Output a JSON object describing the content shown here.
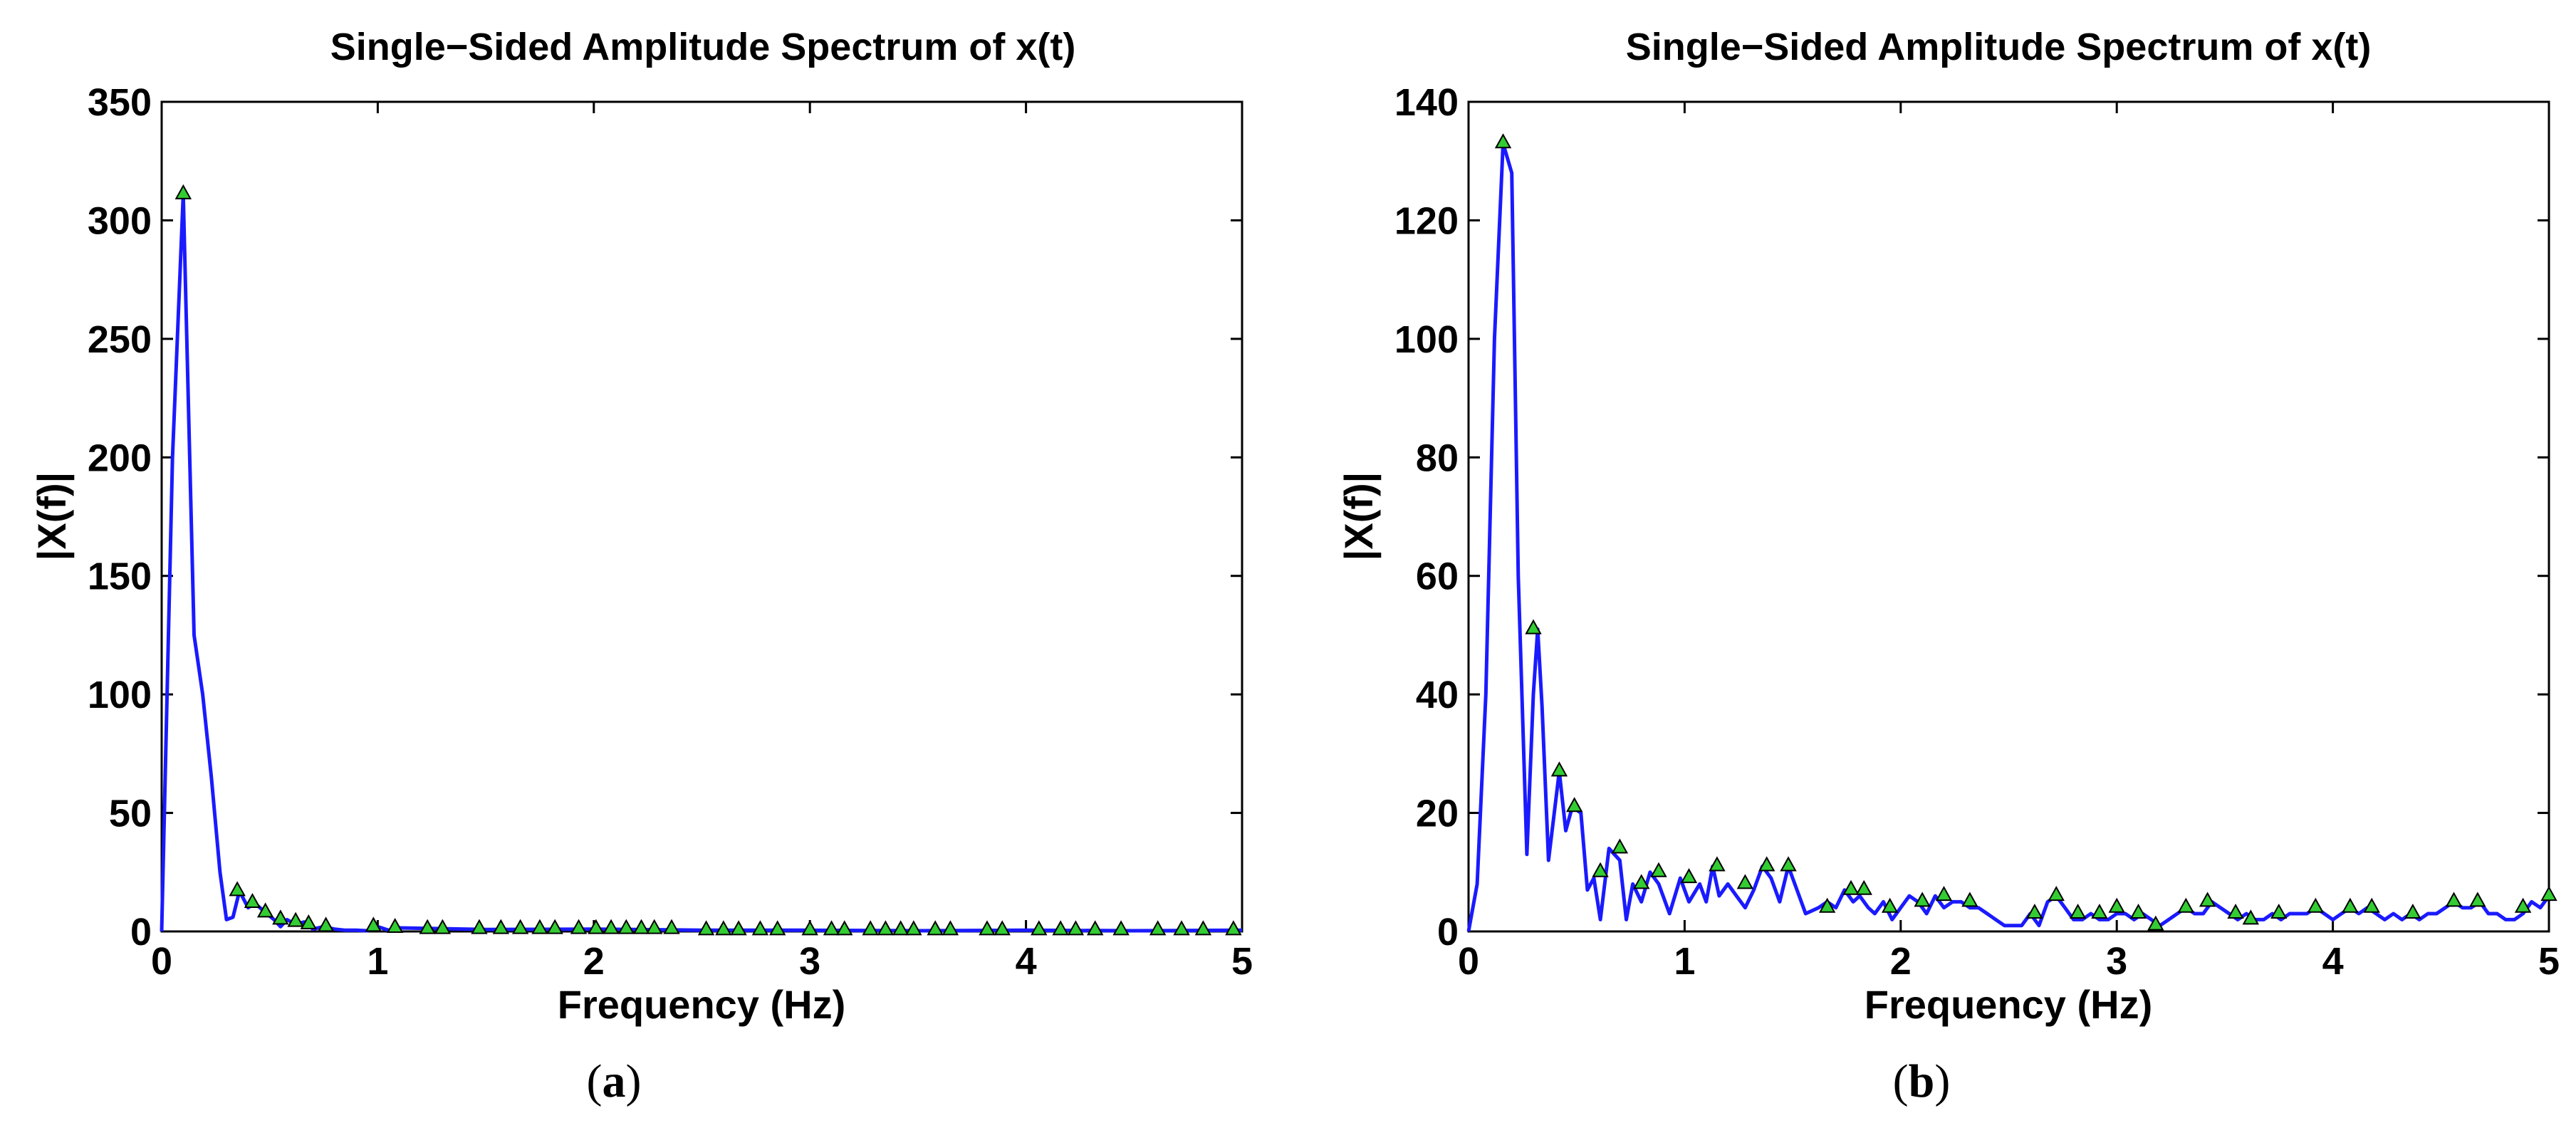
{
  "colors": {
    "line": "#1a1aff",
    "marker_fill": "#33cc33",
    "marker_edge": "#000000",
    "axes": "#000000"
  },
  "chart_data": [
    {
      "type": "line",
      "panel_label": "a",
      "title": "Single−Sided Amplitude Spectrum of x(t)",
      "xlabel": "Frequency (Hz)",
      "ylabel": "|X(f)|",
      "xlim": [
        0,
        5
      ],
      "ylim": [
        0,
        350
      ],
      "xticks": [
        0,
        1,
        2,
        3,
        4,
        5
      ],
      "yticks": [
        0,
        50,
        100,
        150,
        200,
        250,
        300,
        350
      ],
      "grid": false,
      "series": [
        {
          "x": [
            0,
            0.05,
            0.1,
            0.15,
            0.19,
            0.23,
            0.27,
            0.3,
            0.33,
            0.36,
            0.4,
            0.43,
            0.48,
            0.52,
            0.55,
            0.58,
            0.62,
            0.66,
            0.7,
            0.75,
            0.8,
            0.85,
            0.9,
            0.95,
            1.0,
            1.05,
            1.1,
            1.5,
            2.0,
            2.5,
            3.0,
            3.5,
            4.0,
            4.5,
            5.0
          ],
          "values": [
            0,
            200,
            311,
            125,
            100,
            65,
            25,
            5,
            6,
            17,
            10,
            12,
            8,
            5,
            2,
            5,
            3,
            4,
            1,
            2,
            1,
            0.5,
            0.5,
            0.3,
            2,
            0.5,
            1.5,
            0.8,
            1,
            0.5,
            0.5,
            0.3,
            0.5,
            0.3,
            0.5
          ]
        }
      ],
      "markers": {
        "x": [
          0.1,
          0.35,
          0.42,
          0.48,
          0.55,
          0.62,
          0.68,
          0.76,
          0.98,
          1.08,
          1.23,
          1.3,
          1.47,
          1.57,
          1.66,
          1.75,
          1.82,
          1.93,
          2.01,
          2.08,
          2.15,
          2.22,
          2.28,
          2.36,
          2.52,
          2.6,
          2.67,
          2.77,
          2.85,
          3.0,
          3.1,
          3.16,
          3.28,
          3.35,
          3.42,
          3.48,
          3.58,
          3.65,
          3.82,
          3.89,
          4.06,
          4.16,
          4.23,
          4.32,
          4.44,
          4.61,
          4.72,
          4.82,
          4.96
        ],
        "values": [
          311,
          17,
          12,
          8,
          5,
          4,
          3,
          2,
          2,
          1.5,
          1,
          1,
          1,
          1,
          1,
          1,
          1,
          1,
          1,
          1,
          1,
          1,
          1,
          1,
          0.5,
          0.5,
          0.5,
          0.5,
          0.5,
          0.5,
          0.5,
          0.5,
          0.5,
          0.5,
          0.5,
          0.5,
          0.5,
          0.5,
          0.5,
          0.5,
          0.5,
          0.5,
          0.5,
          0.5,
          0.5,
          0.5,
          0.5,
          0.5,
          0.5
        ]
      }
    },
    {
      "type": "line",
      "panel_label": "b",
      "title": "Single−Sided Amplitude Spectrum of x(t)",
      "xlabel": "Frequency (Hz)",
      "ylabel": "|X(f)|",
      "xlim": [
        0,
        5
      ],
      "ylim": [
        0,
        140
      ],
      "xticks": [
        0,
        1,
        2,
        3,
        4,
        5
      ],
      "yticks": [
        0,
        20,
        40,
        60,
        80,
        100,
        120,
        140
      ],
      "grid": false,
      "series": [
        {
          "x": [
            0,
            0.04,
            0.08,
            0.12,
            0.16,
            0.2,
            0.23,
            0.27,
            0.3,
            0.32,
            0.34,
            0.37,
            0.42,
            0.45,
            0.48,
            0.52,
            0.55,
            0.58,
            0.61,
            0.65,
            0.7,
            0.73,
            0.76,
            0.8,
            0.84,
            0.88,
            0.93,
            0.98,
            1.02,
            1.07,
            1.1,
            1.13,
            1.16,
            1.2,
            1.24,
            1.28,
            1.32,
            1.36,
            1.4,
            1.44,
            1.48,
            1.52,
            1.56,
            1.62,
            1.66,
            1.7,
            1.74,
            1.78,
            1.81,
            1.85,
            1.88,
            1.92,
            1.96,
            2.0,
            2.04,
            2.08,
            2.12,
            2.16,
            2.2,
            2.24,
            2.28,
            2.32,
            2.36,
            2.4,
            2.44,
            2.48,
            2.52,
            2.56,
            2.6,
            2.64,
            2.68,
            2.72,
            2.76,
            2.8,
            2.84,
            2.88,
            2.92,
            2.96,
            3.0,
            3.04,
            3.08,
            3.12,
            3.16,
            3.2,
            3.24,
            3.28,
            3.32,
            3.36,
            3.4,
            3.44,
            3.48,
            3.52,
            3.56,
            3.6,
            3.64,
            3.68,
            3.72,
            3.76,
            3.8,
            3.84,
            3.88,
            3.92,
            3.96,
            4.0,
            4.04,
            4.08,
            4.12,
            4.16,
            4.2,
            4.24,
            4.28,
            4.32,
            4.36,
            4.4,
            4.44,
            4.48,
            4.52,
            4.56,
            4.6,
            4.64,
            4.68,
            4.72,
            4.76,
            4.8,
            4.84,
            4.88,
            4.92,
            4.96,
            5.0
          ],
          "values": [
            0,
            8,
            40,
            100,
            133,
            128,
            60,
            13,
            40,
            51,
            38,
            12,
            27,
            17,
            21,
            20,
            7,
            9,
            2,
            14,
            12,
            2,
            8,
            5,
            10,
            8,
            3,
            9,
            5,
            8,
            5,
            11,
            6,
            8,
            6,
            4,
            7,
            11,
            9,
            5,
            11,
            7,
            3,
            4,
            5,
            4,
            7,
            5,
            6,
            4,
            3,
            5,
            2,
            4,
            6,
            5,
            3,
            6,
            4,
            5,
            5,
            4,
            4,
            3,
            2,
            1,
            1,
            1,
            3,
            1,
            5,
            6,
            4,
            2,
            2,
            3,
            2,
            2,
            3,
            3,
            2,
            3,
            2,
            1,
            2,
            3,
            4,
            3,
            3,
            5,
            4,
            3,
            2,
            3,
            2,
            2,
            3,
            2,
            3,
            3,
            3,
            4,
            3,
            2,
            3,
            4,
            3,
            4,
            3,
            2,
            3,
            2,
            3,
            2,
            3,
            3,
            4,
            5,
            4,
            4,
            5,
            3,
            3,
            2,
            2,
            3,
            5,
            4,
            6
          ]
        }
      ],
      "markers": {
        "x": [
          0.16,
          0.3,
          0.42,
          0.49,
          0.61,
          0.7,
          0.8,
          0.88,
          1.02,
          1.15,
          1.28,
          1.38,
          1.48,
          1.66,
          1.77,
          1.83,
          1.95,
          2.1,
          2.2,
          2.32,
          2.62,
          2.72,
          2.82,
          2.92,
          3.0,
          3.1,
          3.18,
          3.32,
          3.42,
          3.55,
          3.62,
          3.75,
          3.92,
          4.08,
          4.18,
          4.37,
          4.56,
          4.67,
          4.88,
          5.0
        ],
        "values": [
          133,
          51,
          27,
          21,
          10,
          14,
          8,
          10,
          9,
          11,
          8,
          11,
          11,
          4,
          7,
          7,
          4,
          5,
          6,
          5,
          3,
          6,
          3,
          3,
          4,
          3,
          1,
          4,
          5,
          3,
          2,
          3,
          4,
          4,
          4,
          3,
          5,
          5,
          4,
          6
        ]
      }
    }
  ]
}
